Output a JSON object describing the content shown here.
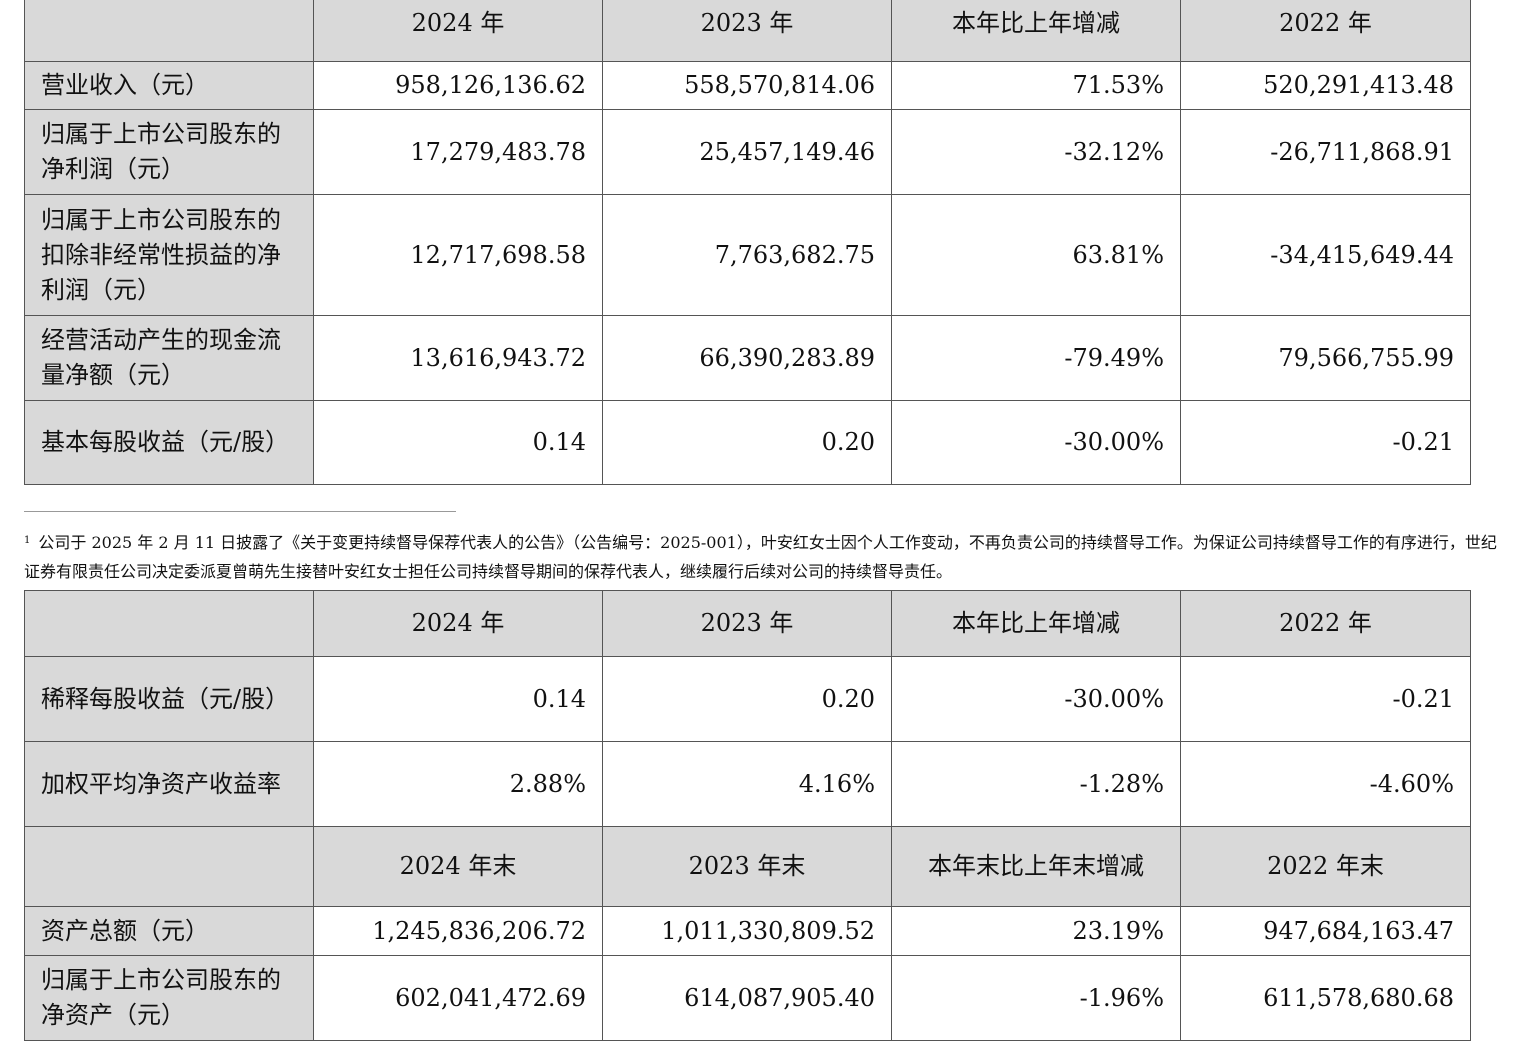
{
  "table1": {
    "headers": [
      "2024 年",
      "2023 年",
      "本年比上年增减",
      "2022 年"
    ],
    "rows": [
      {
        "label": "营业收入（元）",
        "values": [
          "958,126,136.62",
          "558,570,814.06",
          "71.53%",
          "520,291,413.48"
        ]
      },
      {
        "label": "归属于上市公司股东的净利润（元）",
        "values": [
          "17,279,483.78",
          "25,457,149.46",
          "-32.12%",
          "-26,711,868.91"
        ]
      },
      {
        "label": "归属于上市公司股东的扣除非经常性损益的净利润（元）",
        "values": [
          "12,717,698.58",
          "7,763,682.75",
          "63.81%",
          "-34,415,649.44"
        ]
      },
      {
        "label": "经营活动产生的现金流量净额（元）",
        "values": [
          "13,616,943.72",
          "66,390,283.89",
          "-79.49%",
          "79,566,755.99"
        ]
      },
      {
        "label": "基本每股收益（元/股）",
        "values": [
          "0.14",
          "0.20",
          "-30.00%",
          "-0.21"
        ]
      }
    ]
  },
  "footnote": {
    "marker": "1",
    "text": "公司于 2025 年 2 月 11 日披露了《关于变更持续督导保荐代表人的公告》（公告编号：2025-001），叶安红女士因个人工作变动，不再负责公司的持续督导工作。为保证公司持续督导工作的有序进行，世纪证券有限责任公司决定委派夏曾萌先生接替叶安红女士担任公司持续督导期间的保荐代表人，继续履行后续对公司的持续督导责任。"
  },
  "table2": {
    "headers": [
      "2024 年",
      "2023 年",
      "本年比上年增减",
      "2022 年"
    ],
    "rows": [
      {
        "label": "稀释每股收益（元/股）",
        "values": [
          "0.14",
          "0.20",
          "-30.00%",
          "-0.21"
        ]
      },
      {
        "label": "加权平均净资产收益率",
        "values": [
          "2.88%",
          "4.16%",
          "-1.28%",
          "-4.60%"
        ]
      }
    ],
    "headers2": [
      "2024 年末",
      "2023 年末",
      "本年末比上年末增减",
      "2022 年末"
    ],
    "rows2": [
      {
        "label": "资产总额（元）",
        "values": [
          "1,245,836,206.72",
          "1,011,330,809.52",
          "23.19%",
          "947,684,163.47"
        ]
      },
      {
        "label": "归属于上市公司股东的净资产（元）",
        "values": [
          "602,041,472.69",
          "614,087,905.40",
          "-1.96%",
          "611,578,680.68"
        ]
      }
    ]
  }
}
